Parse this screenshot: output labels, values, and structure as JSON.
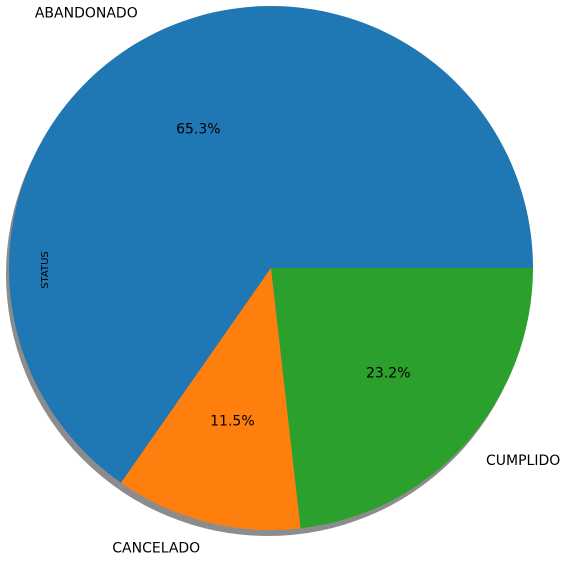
{
  "chart_data": {
    "type": "pie",
    "ylabel": "STATUS",
    "shadow": true,
    "start_angle_deg": 0,
    "direction": "counterclockwise",
    "slices": [
      {
        "label": "ABANDONADO",
        "value": 65.3,
        "pct_label": "65.3%",
        "color": "#1f77b4"
      },
      {
        "label": "CANCELADO",
        "value": 11.5,
        "pct_label": "11.5%",
        "color": "#ff7f0e"
      },
      {
        "label": "CUMPLIDO",
        "value": 23.2,
        "pct_label": "23.2%",
        "color": "#2ca02c"
      }
    ]
  }
}
